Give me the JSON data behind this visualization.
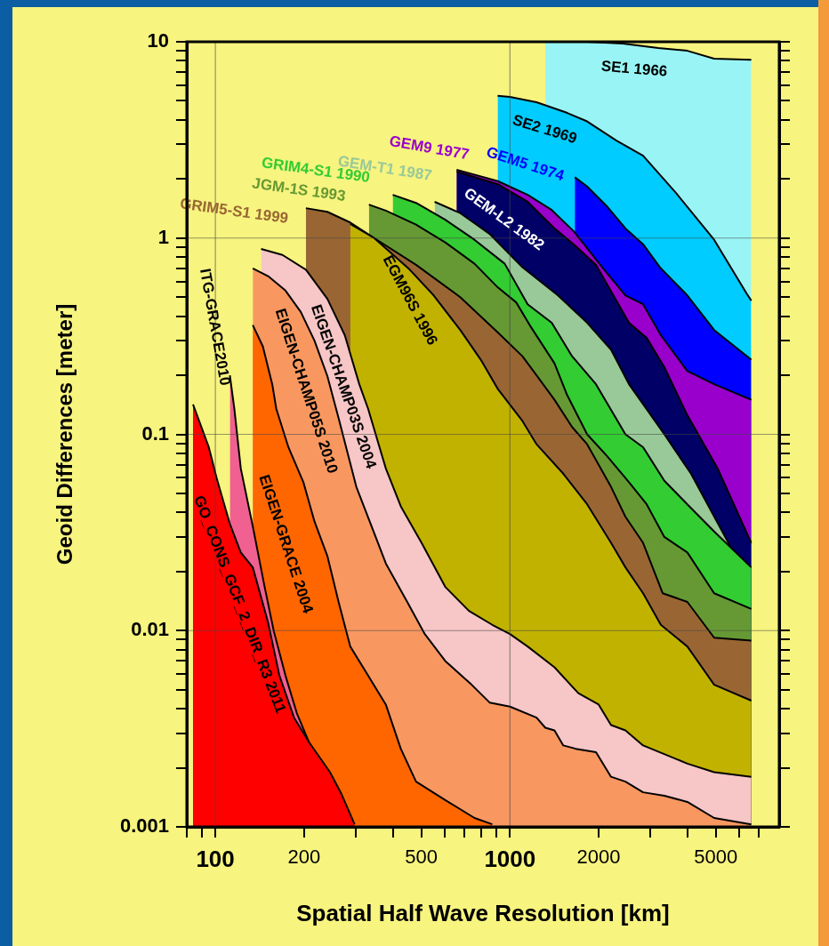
{
  "chart_data": {
    "type": "area",
    "xlabel": "Spatial Half Wave Resolution [km]",
    "ylabel": "Geoid Differences [meter]",
    "log": "xy",
    "grid": true,
    "legend": false,
    "xlim": [
      80,
      8200
    ],
    "ylim": [
      0.001,
      10
    ],
    "xticks": [
      {
        "value": 80,
        "label": null
      },
      {
        "value": 90,
        "label": null
      },
      100,
      200,
      {
        "value": 300,
        "label": null
      },
      {
        "value": 400,
        "label": null
      },
      500,
      {
        "value": 600,
        "label": null
      },
      {
        "value": 700,
        "label": null
      },
      {
        "value": 800,
        "label": null
      },
      {
        "value": 900,
        "label": null
      },
      1000,
      2000,
      {
        "value": 3000,
        "label": null
      },
      {
        "value": 4000,
        "label": null
      },
      5000,
      {
        "value": 6000,
        "label": null
      },
      {
        "value": 7000,
        "label": null
      }
    ],
    "yticks": [
      0.001,
      {
        "value": 0.002,
        "label": null
      },
      {
        "value": 0.003,
        "label": null
      },
      {
        "value": 0.004,
        "label": null
      },
      {
        "value": 0.005,
        "label": null
      },
      {
        "value": 0.006,
        "label": null
      },
      {
        "value": 0.007,
        "label": null
      },
      {
        "value": 0.008,
        "label": null
      },
      {
        "value": 0.009,
        "label": null
      },
      0.01,
      {
        "value": 0.02,
        "label": null
      },
      {
        "value": 0.03,
        "label": null
      },
      {
        "value": 0.04,
        "label": null
      },
      {
        "value": 0.05,
        "label": null
      },
      {
        "value": 0.06,
        "label": null
      },
      {
        "value": 0.07,
        "label": null
      },
      {
        "value": 0.08,
        "label": null
      },
      {
        "value": 0.09,
        "label": null
      },
      0.1,
      {
        "value": 0.2,
        "label": null
      },
      {
        "value": 0.3,
        "label": null
      },
      {
        "value": 0.4,
        "label": null
      },
      {
        "value": 0.5,
        "label": null
      },
      {
        "value": 0.6,
        "label": null
      },
      {
        "value": 0.7,
        "label": null
      },
      {
        "value": 0.8,
        "label": null
      },
      {
        "value": 0.9,
        "label": null
      },
      1,
      {
        "value": 2,
        "label": null
      },
      {
        "value": 3,
        "label": null
      },
      {
        "value": 4,
        "label": null
      },
      {
        "value": 5,
        "label": null
      },
      {
        "value": 6,
        "label": null
      },
      {
        "value": 7,
        "label": null
      },
      {
        "value": 8,
        "label": null
      },
      {
        "value": 9,
        "label": null
      },
      10
    ],
    "series": [
      {
        "name": "SE1 1966",
        "color": "#99f5f5",
        "x": [
          1318,
          1828,
          2415,
          3186,
          4000,
          4932,
          6592
        ],
        "values": [
          10,
          10,
          9.8,
          9.3,
          9.0,
          8.2,
          8.1
        ]
      },
      {
        "name": "SE2 1969",
        "color": "#00ccff",
        "x": [
          908,
          1000,
          1231,
          1559,
          1828,
          2298,
          2830,
          3658,
          4932,
          6368,
          6592
        ],
        "values": [
          5.3,
          5.24,
          4.92,
          4.35,
          3.93,
          3.14,
          2.63,
          1.7,
          0.98,
          0.52,
          0.48
        ]
      },
      {
        "name": "GEM5 1974",
        "color": "#0000ff",
        "x": [
          1660,
          1828,
          2144,
          2466,
          2830,
          3228,
          4000,
          4932,
          6592
        ],
        "values": [
          2.04,
          1.83,
          1.44,
          1.12,
          0.93,
          0.71,
          0.51,
          0.34,
          0.24
        ]
      },
      {
        "name": "GEM9 1977",
        "color": "#9900cc",
        "x": [
          659,
          910,
          1148,
          1386,
          1648,
          2056,
          2466,
          2830,
          3251,
          4000,
          4932,
          6592
        ],
        "values": [
          2.23,
          1.95,
          1.66,
          1.39,
          1.08,
          0.71,
          0.51,
          0.46,
          0.32,
          0.21,
          0.18,
          0.15
        ]
      },
      {
        "name": "GEM-L2 1982",
        "color": "#000066",
        "x": [
          659,
          910,
          1148,
          1416,
          1671,
          1959,
          2535,
          2911,
          3342,
          4000,
          5070,
          6592
        ],
        "values": [
          2.18,
          1.88,
          1.53,
          1.12,
          0.91,
          0.73,
          0.37,
          0.31,
          0.22,
          0.125,
          0.067,
          0.028
        ]
      },
      {
        "name": "GEM-T1 1987",
        "color": "#99c999",
        "x": [
          555,
          678,
          853,
          1102,
          1455,
          1828,
          2203,
          2535,
          3342,
          4115,
          5660
        ],
        "values": [
          1.53,
          1.34,
          1.05,
          0.71,
          0.51,
          0.37,
          0.27,
          0.18,
          0.1,
          0.063,
          0.026
        ]
      },
      {
        "name": "GRIM4-S1 1990",
        "color": "#33cc33",
        "x": [
          400,
          480,
          603,
          758,
          960,
          1148,
          1386,
          1625,
          1959,
          2466,
          2830,
          3342,
          4000,
          4932,
          6592
        ],
        "values": [
          1.66,
          1.51,
          1.24,
          0.98,
          0.74,
          0.46,
          0.37,
          0.25,
          0.18,
          0.1,
          0.086,
          0.058,
          0.044,
          0.032,
          0.021
        ]
      },
      {
        "name": "JGM-1S 1993",
        "color": "#669933",
        "x": [
          332,
          379,
          480,
          603,
          758,
          910,
          1050,
          1181,
          1416,
          1559,
          1828,
          2144,
          2535,
          2911,
          3342,
          4000,
          4932,
          6592
        ],
        "values": [
          1.48,
          1.38,
          1.17,
          0.95,
          0.74,
          0.56,
          0.47,
          0.35,
          0.23,
          0.16,
          0.1,
          0.077,
          0.057,
          0.044,
          0.03,
          0.025,
          0.0155,
          0.0129
        ]
      },
      {
        "name": "GRIM5-S1 1999",
        "color": "#996633",
        "x": [
          203,
          240,
          287,
          346,
          480,
          678,
          910,
          1102,
          1231,
          1416,
          1625,
          1828,
          2203,
          2466,
          2830,
          3298,
          4000,
          4932,
          6592
        ],
        "values": [
          1.42,
          1.36,
          1.2,
          1.0,
          0.73,
          0.5,
          0.33,
          0.25,
          0.2,
          0.15,
          0.109,
          0.089,
          0.054,
          0.038,
          0.028,
          0.0155,
          0.014,
          0.0092,
          0.0089
        ]
      },
      {
        "name": "EGM96S 1996",
        "color": "#c2b200",
        "x": [
          287,
          346,
          457,
          551,
          678,
          796,
          910,
          1102,
          1231,
          1517,
          1828,
          2203,
          2466,
          2830,
          3251,
          4000,
          4932,
          6592
        ],
        "values": [
          1.18,
          1.0,
          0.69,
          0.51,
          0.34,
          0.24,
          0.17,
          0.117,
          0.089,
          0.063,
          0.044,
          0.028,
          0.021,
          0.0155,
          0.0107,
          0.0083,
          0.0053,
          0.0044
        ]
      },
      {
        "name": "EIGEN-CHAMP03S 2004",
        "color": "#f7c6c6",
        "x": [
          143,
          169,
          203,
          240,
          275,
          308,
          330,
          379,
          426,
          501,
          603,
          726,
          871,
          1000,
          1148,
          1416,
          1706,
          2000,
          2203,
          2466,
          2830,
          4000,
          4932,
          6592
        ],
        "values": [
          0.88,
          0.82,
          0.69,
          0.49,
          0.32,
          0.18,
          0.135,
          0.067,
          0.043,
          0.028,
          0.0167,
          0.0126,
          0.0107,
          0.0096,
          0.0083,
          0.0065,
          0.0048,
          0.0042,
          0.0033,
          0.0031,
          0.0026,
          0.0021,
          0.0019,
          0.0018
        ]
      },
      {
        "name": "EIGEN-CHAMP05S 2010",
        "color": "#f89860",
        "x": [
          134,
          151,
          173,
          195,
          217,
          240,
          262,
          301,
          339,
          379,
          448,
          514,
          603,
          741,
          853,
          1000,
          1231,
          1318,
          1416,
          1517,
          1671,
          1959,
          2203,
          2466,
          2830,
          3342,
          4000,
          4932,
          6592
        ],
        "values": [
          0.7,
          0.64,
          0.54,
          0.42,
          0.3,
          0.198,
          0.121,
          0.054,
          0.034,
          0.022,
          0.014,
          0.0096,
          0.007,
          0.0053,
          0.0043,
          0.0041,
          0.0036,
          0.0032,
          0.0031,
          0.0026,
          0.0025,
          0.0024,
          0.0018,
          0.0017,
          0.0015,
          0.00144,
          0.00134,
          0.00111,
          0.00103
        ]
      },
      {
        "name": "EIGEN-GRACE 2004",
        "color": "#ff6600",
        "x": [
          134,
          145,
          156,
          161,
          177,
          199,
          217,
          240,
          262,
          287,
          330,
          379,
          426,
          480,
          603,
          758,
          871
        ],
        "values": [
          0.36,
          0.28,
          0.18,
          0.135,
          0.086,
          0.057,
          0.036,
          0.024,
          0.014,
          0.0083,
          0.0059,
          0.0042,
          0.0025,
          0.0017,
          0.00137,
          0.00111,
          0.00103
        ]
      },
      {
        "name": "ITG-GRACE2010",
        "color": "#f06090",
        "x": [
          112,
          116,
          122,
          134,
          147,
          158,
          173,
          189,
          208
        ],
        "values": [
          0.2,
          0.135,
          0.067,
          0.034,
          0.0167,
          0.0099,
          0.0059,
          0.0038,
          0.0027
        ]
      },
      {
        "name": "GO_CONS_GCF_2_DIR_R3 2011",
        "color": "#ff0000",
        "x": [
          84,
          95,
          101,
          112,
          122,
          134,
          151,
          165,
          185,
          208,
          245,
          268,
          297
        ],
        "values": [
          0.142,
          0.086,
          0.06,
          0.035,
          0.025,
          0.021,
          0.011,
          0.0059,
          0.0036,
          0.0027,
          0.0019,
          0.00147,
          0.00103
        ]
      }
    ]
  }
}
